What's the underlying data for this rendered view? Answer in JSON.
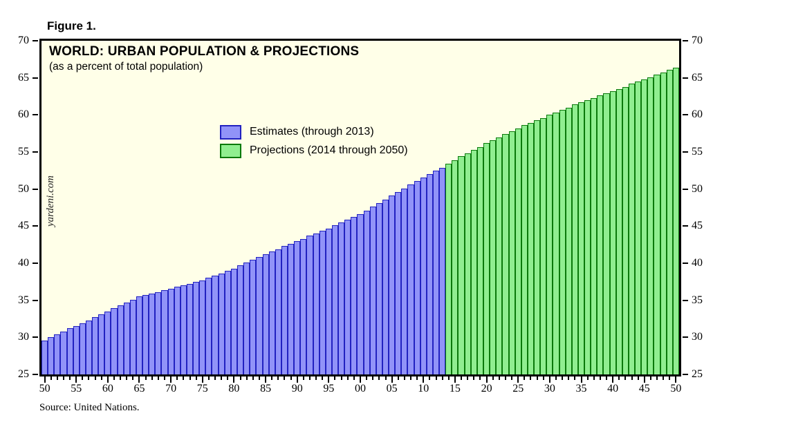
{
  "figure_label": "Figure 1.",
  "chart": {
    "watermark": "yardeni.com",
    "source": "Source: United Nations.",
    "colors": {
      "plot_background": "#FFFFE8",
      "frame": "#000000",
      "estimates_fill": "#9193F8",
      "estimates_border": "#2121C0",
      "projections_fill": "#90EE90",
      "projections_border": "#0A780A"
    }
  },
  "chart_data": {
    "type": "bar",
    "title": "WORLD: URBAN POPULATION & PROJECTIONS",
    "subtitle": "(as a percent of total population)",
    "xlabel": "",
    "ylabel": "",
    "ylim": [
      25,
      70
    ],
    "ytick_step": 5,
    "ytick_labels": [
      "25",
      "30",
      "35",
      "40",
      "45",
      "50",
      "55",
      "60",
      "65",
      "70"
    ],
    "x_start_year": 1950,
    "x_end_year": 2050,
    "xtick_every_year": true,
    "xtick_label_step": 5,
    "xtick_label_style": "two-digit",
    "axis_labels_on_both_sides": true,
    "grid": false,
    "legend_position": "upper-left-inside",
    "series": [
      {
        "name": "Estimates (through 2013)",
        "start_year": 1950,
        "end_year": 2013,
        "fill": "#9193F8",
        "border": "#2121C0",
        "values": [
          29.6,
          30.0,
          30.4,
          30.8,
          31.2,
          31.5,
          31.9,
          32.3,
          32.7,
          33.1,
          33.5,
          33.9,
          34.3,
          34.7,
          35.1,
          35.5,
          35.7,
          35.9,
          36.1,
          36.4,
          36.6,
          36.8,
          37.0,
          37.2,
          37.5,
          37.7,
          38.0,
          38.3,
          38.6,
          39.0,
          39.3,
          39.7,
          40.1,
          40.5,
          40.8,
          41.2,
          41.6,
          41.9,
          42.3,
          42.6,
          43.0,
          43.3,
          43.7,
          44.0,
          44.4,
          44.7,
          45.1,
          45.5,
          45.9,
          46.2,
          46.6,
          47.1,
          47.6,
          48.1,
          48.6,
          49.1,
          49.6,
          50.1,
          50.6,
          51.1,
          51.6,
          52.0,
          52.5,
          52.9
        ]
      },
      {
        "name": "Projections (2014 through 2050)",
        "start_year": 2014,
        "end_year": 2050,
        "fill": "#90EE90",
        "border": "#0A780A",
        "values": [
          53.4,
          53.9,
          54.4,
          54.8,
          55.3,
          55.7,
          56.2,
          56.6,
          57.0,
          57.4,
          57.8,
          58.2,
          58.6,
          58.9,
          59.3,
          59.6,
          60.0,
          60.3,
          60.7,
          61.0,
          61.4,
          61.7,
          62.0,
          62.3,
          62.6,
          62.9,
          63.2,
          63.5,
          63.8,
          64.2,
          64.5,
          64.8,
          65.1,
          65.4,
          65.7,
          66.1,
          66.4
        ]
      }
    ]
  }
}
